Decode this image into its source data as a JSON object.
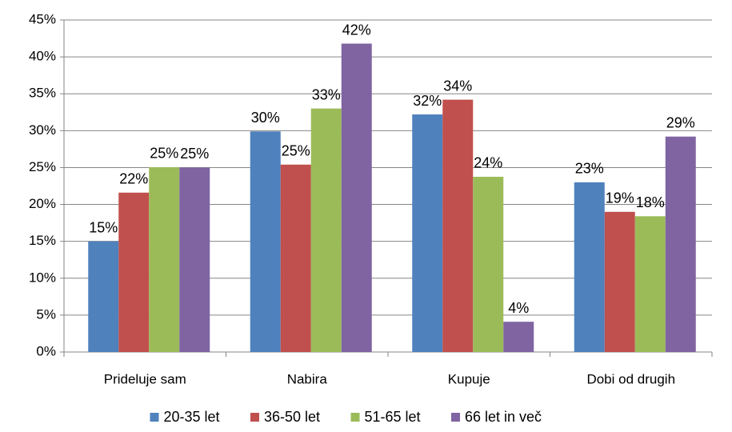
{
  "chart_data": {
    "type": "bar",
    "categories": [
      "Prideluje sam",
      "Nabira",
      "Kupuje",
      "Dobi od drugih"
    ],
    "series": [
      {
        "name": "20-35 let",
        "color": "#4f81bd",
        "values": [
          15,
          29.9,
          32.2,
          23
        ],
        "value_labels": [
          "15%",
          "30%",
          "32%",
          "23%"
        ]
      },
      {
        "name": "36-50 let",
        "color": "#c0504d",
        "values": [
          21.6,
          25.4,
          34.2,
          19
        ],
        "value_labels": [
          "22%",
          "25%",
          "34%",
          "19%"
        ]
      },
      {
        "name": "51-65 let",
        "color": "#9bbb59",
        "values": [
          25.05,
          33,
          23.75,
          18.4
        ],
        "value_labels": [
          "25%",
          "33%",
          "24%",
          "18%"
        ]
      },
      {
        "name": "66 let in več",
        "color": "#8064a2",
        "values": [
          25,
          41.8,
          4.1,
          29.2
        ],
        "value_labels": [
          "25%",
          "42%",
          "4%",
          "29%"
        ]
      }
    ],
    "ylim": [
      0,
      45
    ],
    "yticks": [
      {
        "value": 0,
        "label": "0%"
      },
      {
        "value": 5,
        "label": "5%"
      },
      {
        "value": 10,
        "label": "10%"
      },
      {
        "value": 15,
        "label": "15%"
      },
      {
        "value": 20,
        "label": "20%"
      },
      {
        "value": 25,
        "label": "25%"
      },
      {
        "value": 30,
        "label": "30%"
      },
      {
        "value": 35,
        "label": "35%"
      },
      {
        "value": 40,
        "label": "40%"
      },
      {
        "value": 45,
        "label": "45%"
      }
    ],
    "grid": true,
    "legend": "bottom"
  }
}
